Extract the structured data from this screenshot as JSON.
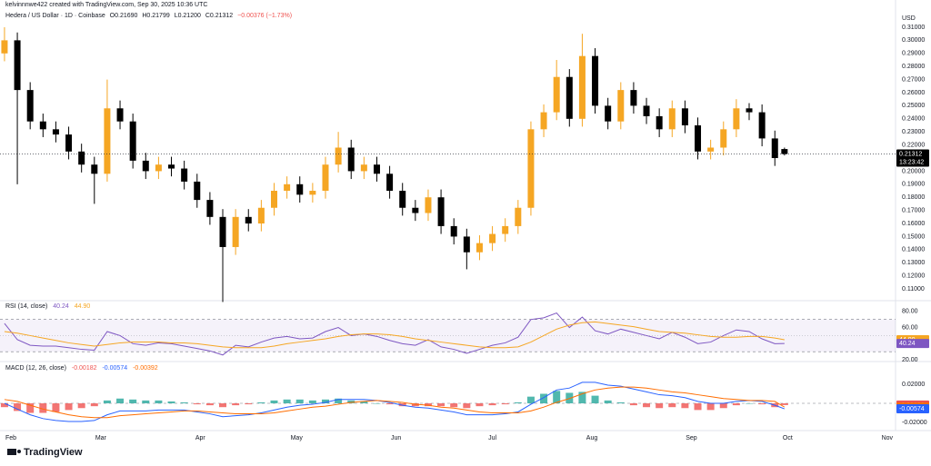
{
  "header": {
    "credit": "kelvinnnwe422 created with TradingView.com, Sep 30, 2025 10:36 UTC",
    "symbol": "Hedera / US Dollar · 1D · Coinbase",
    "ohlc": [
      "O0.21690",
      "H0.21799",
      "L0.21200",
      "C0.21312",
      "−0.00376 (−1.73%)"
    ]
  },
  "currency": "USD",
  "countdown": "13:23:42",
  "branding": "TradingView",
  "chart_data": [
    {
      "type": "candlestick",
      "x": [
        30,
        34,
        38,
        42,
        46,
        50,
        54,
        58,
        62,
        66,
        70,
        74,
        78,
        82,
        86,
        90,
        94,
        98,
        102,
        106,
        110,
        114,
        118,
        122,
        126,
        130,
        134,
        138,
        142,
        146,
        150,
        154,
        158,
        162,
        166,
        170,
        174,
        178,
        182,
        186,
        190,
        194,
        198,
        202,
        206,
        210,
        214,
        218,
        222,
        226,
        230,
        234,
        238,
        242,
        246,
        250,
        254,
        258,
        262,
        266,
        270,
        273
      ],
      "open": [
        0.29,
        0.3,
        0.262,
        0.238,
        0.232,
        0.228,
        0.215,
        0.205,
        0.198,
        0.248,
        0.238,
        0.208,
        0.2,
        0.205,
        0.202,
        0.192,
        0.178,
        0.165,
        0.142,
        0.165,
        0.16,
        0.172,
        0.185,
        0.19,
        0.182,
        0.185,
        0.205,
        0.218,
        0.2,
        0.205,
        0.198,
        0.185,
        0.172,
        0.168,
        0.18,
        0.158,
        0.15,
        0.138,
        0.145,
        0.152,
        0.158,
        0.172,
        0.232,
        0.245,
        0.272,
        0.24,
        0.288,
        0.25,
        0.238,
        0.262,
        0.25,
        0.242,
        0.232,
        0.248,
        0.235,
        0.215,
        0.218,
        0.232,
        0.248,
        0.245,
        0.225,
        0.2169
      ],
      "high": [
        0.31,
        0.306,
        0.268,
        0.244,
        0.238,
        0.234,
        0.221,
        0.211,
        0.27,
        0.254,
        0.244,
        0.214,
        0.211,
        0.211,
        0.208,
        0.198,
        0.184,
        0.171,
        0.171,
        0.171,
        0.178,
        0.191,
        0.196,
        0.196,
        0.191,
        0.211,
        0.23,
        0.224,
        0.211,
        0.211,
        0.204,
        0.191,
        0.178,
        0.186,
        0.186,
        0.164,
        0.156,
        0.151,
        0.158,
        0.164,
        0.178,
        0.238,
        0.251,
        0.285,
        0.278,
        0.305,
        0.294,
        0.256,
        0.268,
        0.268,
        0.256,
        0.248,
        0.254,
        0.254,
        0.241,
        0.224,
        0.238,
        0.255,
        0.252,
        0.251,
        0.231,
        0.21799
      ],
      "low": [
        0.284,
        0.19,
        0.232,
        0.226,
        0.222,
        0.209,
        0.199,
        0.175,
        0.192,
        0.232,
        0.202,
        0.194,
        0.194,
        0.196,
        0.186,
        0.172,
        0.159,
        0.1,
        0.136,
        0.154,
        0.154,
        0.166,
        0.179,
        0.176,
        0.176,
        0.179,
        0.199,
        0.194,
        0.194,
        0.192,
        0.179,
        0.166,
        0.162,
        0.162,
        0.152,
        0.144,
        0.125,
        0.132,
        0.139,
        0.146,
        0.152,
        0.166,
        0.226,
        0.239,
        0.234,
        0.234,
        0.244,
        0.232,
        0.232,
        0.244,
        0.236,
        0.226,
        0.226,
        0.229,
        0.209,
        0.209,
        0.212,
        0.226,
        0.239,
        0.219,
        0.204,
        0.212
      ],
      "close": [
        0.3,
        0.262,
        0.238,
        0.232,
        0.228,
        0.215,
        0.205,
        0.198,
        0.248,
        0.238,
        0.208,
        0.2,
        0.205,
        0.202,
        0.192,
        0.178,
        0.165,
        0.142,
        0.165,
        0.16,
        0.172,
        0.185,
        0.19,
        0.182,
        0.185,
        0.205,
        0.218,
        0.2,
        0.205,
        0.198,
        0.185,
        0.172,
        0.168,
        0.18,
        0.158,
        0.15,
        0.138,
        0.145,
        0.152,
        0.158,
        0.172,
        0.232,
        0.245,
        0.272,
        0.24,
        0.288,
        0.25,
        0.238,
        0.262,
        0.25,
        0.242,
        0.232,
        0.248,
        0.235,
        0.215,
        0.218,
        0.232,
        0.248,
        0.245,
        0.225,
        0.21,
        0.21312
      ],
      "up_color": "#f5a623",
      "down_color": "#000000",
      "xlim": [
        28.6,
        307.6
      ],
      "xticks": [
        {
          "value": 32,
          "label": "Feb"
        },
        {
          "value": 60,
          "label": "Mar"
        },
        {
          "value": 91,
          "label": "Apr"
        },
        {
          "value": 121,
          "label": "May"
        },
        {
          "value": 152,
          "label": "Jun"
        },
        {
          "value": 182,
          "label": "Jul"
        },
        {
          "value": 213,
          "label": "Aug"
        },
        {
          "value": 244,
          "label": "Sep"
        },
        {
          "value": 274,
          "label": "Oct"
        },
        {
          "value": 305,
          "label": "Nov"
        }
      ],
      "ylim": [
        0.1017,
        0.3204
      ],
      "yticks": [
        {
          "value": 0.11,
          "label": "0.11000"
        },
        {
          "value": 0.12,
          "label": "0.12000"
        },
        {
          "value": 0.13,
          "label": "0.13000"
        },
        {
          "value": 0.14,
          "label": "0.14000"
        },
        {
          "value": 0.15,
          "label": "0.15000"
        },
        {
          "value": 0.16,
          "label": "0.16000"
        },
        {
          "value": 0.17,
          "label": "0.17000"
        },
        {
          "value": 0.18,
          "label": "0.18000"
        },
        {
          "value": 0.19,
          "label": "0.19000"
        },
        {
          "value": 0.2,
          "label": "0.20000"
        },
        {
          "value": 0.21,
          "label": "0.21000"
        },
        {
          "value": 0.22,
          "label": "0.22000"
        },
        {
          "value": 0.23,
          "label": "0.23000"
        },
        {
          "value": 0.24,
          "label": "0.24000"
        },
        {
          "value": 0.25,
          "label": "0.25000"
        },
        {
          "value": 0.26,
          "label": "0.26000"
        },
        {
          "value": 0.27,
          "label": "0.27000"
        },
        {
          "value": 0.28,
          "label": "0.28000"
        },
        {
          "value": 0.29,
          "label": "0.29000"
        },
        {
          "value": 0.3,
          "label": "0.30000"
        },
        {
          "value": 0.31,
          "label": "0.31000"
        }
      ],
      "price_line": true
    },
    {
      "type": "line",
      "title": "RSI (14, close)",
      "series": [
        {
          "color": "#7e57c2",
          "values": [
            65,
            45,
            38,
            37,
            37,
            35,
            33,
            32,
            55,
            50,
            40,
            38,
            41,
            40,
            37,
            34,
            31,
            26,
            38,
            36,
            42,
            47,
            49,
            46,
            47,
            55,
            60,
            50,
            52,
            49,
            44,
            40,
            38,
            45,
            36,
            33,
            28,
            33,
            38,
            41,
            48,
            70,
            72,
            78,
            60,
            73,
            56,
            52,
            58,
            54,
            50,
            46,
            54,
            48,
            40,
            42,
            50,
            57,
            55,
            46,
            40,
            40.24
          ]
        },
        {
          "color": "#f5a623",
          "values": [
            55,
            53,
            50,
            47,
            44,
            41,
            39,
            37,
            39,
            41,
            42,
            42,
            42,
            41,
            41,
            40,
            38,
            36,
            35,
            35,
            35,
            37,
            40,
            42,
            44,
            46,
            49,
            51,
            52,
            52,
            51,
            49,
            46,
            44,
            42,
            40,
            38,
            36,
            35,
            35,
            36,
            42,
            50,
            58,
            63,
            66,
            67,
            65,
            63,
            61,
            58,
            55,
            54,
            53,
            51,
            49,
            48,
            48,
            49,
            49,
            47,
            44.9
          ],
          "last_label": "44.90"
        }
      ],
      "band": [
        30,
        70
      ],
      "band_color": "#7e57c2",
      "midline": 50,
      "ylim": [
        19,
        91
      ],
      "yticks": [
        {
          "value": 80,
          "label": "80.00"
        },
        {
          "value": 60,
          "label": "60.00"
        },
        {
          "value": 20,
          "label": "20.00"
        }
      ]
    },
    {
      "type": "macd",
      "title": "MACD (12, 26, close)",
      "histogram": {
        "up_color": "#26a69a",
        "down_color": "#ef5350",
        "values": [
          -0.004,
          -0.008,
          -0.01,
          -0.01,
          -0.009,
          -0.007,
          -0.005,
          -0.003,
          0.003,
          0.005,
          0.004,
          0.003,
          0.003,
          0.002,
          0.001,
          -0.001,
          -0.002,
          -0.004,
          -0.002,
          -0.001,
          0.001,
          0.003,
          0.004,
          0.004,
          0.003,
          0.004,
          0.005,
          0.003,
          0.002,
          0.0,
          -0.001,
          -0.003,
          -0.003,
          -0.003,
          -0.003,
          -0.004,
          -0.005,
          -0.003,
          -0.002,
          -0.001,
          0.001,
          0.007,
          0.01,
          0.013,
          0.011,
          0.012,
          0.008,
          0.003,
          0.001,
          -0.002,
          -0.004,
          -0.005,
          -0.004,
          -0.005,
          -0.007,
          -0.007,
          -0.005,
          -0.002,
          0.0,
          -0.001,
          -0.004,
          -0.00182
        ]
      },
      "series": [
        {
          "color": "#2962ff",
          "values": [
            0.0,
            -0.006,
            -0.012,
            -0.016,
            -0.018,
            -0.019,
            -0.019,
            -0.018,
            -0.012,
            -0.008,
            -0.008,
            -0.008,
            -0.007,
            -0.007,
            -0.007,
            -0.009,
            -0.011,
            -0.014,
            -0.013,
            -0.012,
            -0.01,
            -0.007,
            -0.004,
            -0.002,
            -0.001,
            0.001,
            0.004,
            0.004,
            0.004,
            0.003,
            0.001,
            -0.002,
            -0.004,
            -0.005,
            -0.007,
            -0.009,
            -0.012,
            -0.012,
            -0.012,
            -0.011,
            -0.009,
            -0.001,
            0.006,
            0.014,
            0.016,
            0.022,
            0.022,
            0.019,
            0.018,
            0.015,
            0.012,
            0.009,
            0.008,
            0.006,
            0.002,
            0.0,
            0.0,
            0.002,
            0.003,
            0.002,
            -0.002,
            -0.00574
          ]
        },
        {
          "color": "#ff6d00",
          "values": [
            0.004,
            0.002,
            -0.002,
            -0.006,
            -0.009,
            -0.012,
            -0.014,
            -0.015,
            -0.015,
            -0.013,
            -0.012,
            -0.011,
            -0.01,
            -0.009,
            -0.008,
            -0.008,
            -0.009,
            -0.01,
            -0.011,
            -0.011,
            -0.011,
            -0.01,
            -0.008,
            -0.006,
            -0.004,
            -0.003,
            -0.001,
            0.001,
            0.002,
            0.003,
            0.002,
            0.001,
            -0.001,
            -0.002,
            -0.004,
            -0.005,
            -0.007,
            -0.009,
            -0.01,
            -0.01,
            -0.01,
            -0.008,
            -0.004,
            0.001,
            0.005,
            0.01,
            0.014,
            0.016,
            0.017,
            0.017,
            0.016,
            0.014,
            0.012,
            0.011,
            0.009,
            0.007,
            0.005,
            0.004,
            0.003,
            0.003,
            0.002,
            -0.00392
          ]
        }
      ],
      "ylim": [
        -0.0276,
        0.0419
      ],
      "yticks": [
        {
          "value": 0.02,
          "label": "0.02000"
        },
        {
          "value": -0.02,
          "label": "-0.02000"
        }
      ],
      "zero_line": true
    }
  ]
}
